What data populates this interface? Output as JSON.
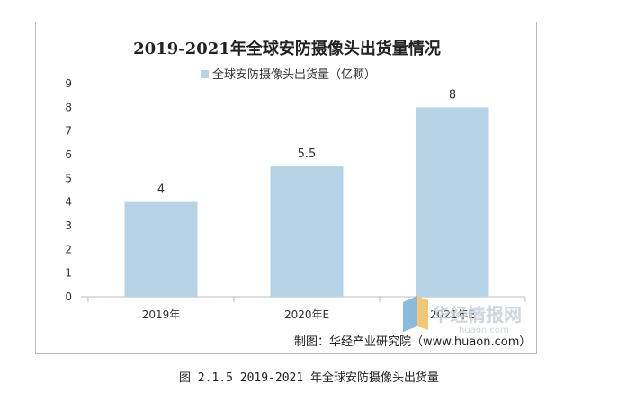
{
  "chart_data": {
    "type": "bar",
    "title": "2019-2021年全球安防摄像头出货量情况",
    "categories": [
      "2019年",
      "2020年E",
      "2021年E"
    ],
    "series": [
      {
        "name": "全球安防摄像头出货量（亿颗）",
        "values": [
          4,
          5.5,
          8
        ],
        "data_labels": [
          "4",
          "5.5",
          "8"
        ]
      }
    ],
    "y_ticks": [
      "0",
      "1",
      "2",
      "3",
      "4",
      "5",
      "6",
      "7",
      "8",
      "9"
    ],
    "ylim": [
      0,
      9
    ],
    "xlabel": "",
    "ylabel": "",
    "grid": false,
    "legend_position": "top-center",
    "bar_color": "#b7d4e6"
  },
  "source": "制图：华经产业研究院（www.huaon.com）",
  "watermark": {
    "text": "华经情报网",
    "sub": "huaon.com"
  },
  "caption": "图 2.1.5 2019-2021 年全球安防摄像头出货量"
}
